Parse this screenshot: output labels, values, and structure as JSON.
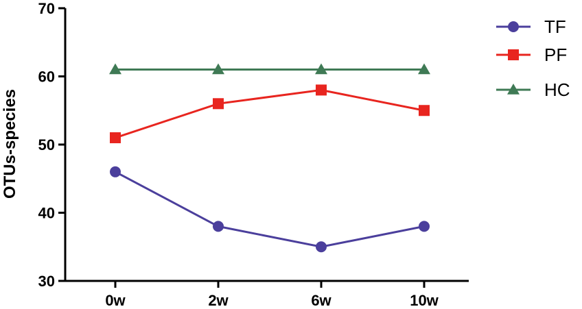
{
  "chart_data": {
    "type": "line",
    "categories": [
      "0w",
      "2w",
      "6w",
      "10w"
    ],
    "series": [
      {
        "name": "TF",
        "values": [
          46,
          38,
          35,
          38
        ],
        "color": "#4b3f9c",
        "marker": "circle"
      },
      {
        "name": "PF",
        "values": [
          51,
          56,
          58,
          55
        ],
        "color": "#e8251f",
        "marker": "square"
      },
      {
        "name": "HC",
        "values": [
          61,
          61,
          61,
          61
        ],
        "color": "#3f7a55",
        "marker": "triangle"
      }
    ],
    "ylabel": "OTUs-species",
    "xlabel": "",
    "ylim": [
      30,
      70
    ],
    "yticks": [
      30,
      40,
      50,
      60,
      70
    ],
    "grid": false,
    "legend": "top-right"
  }
}
